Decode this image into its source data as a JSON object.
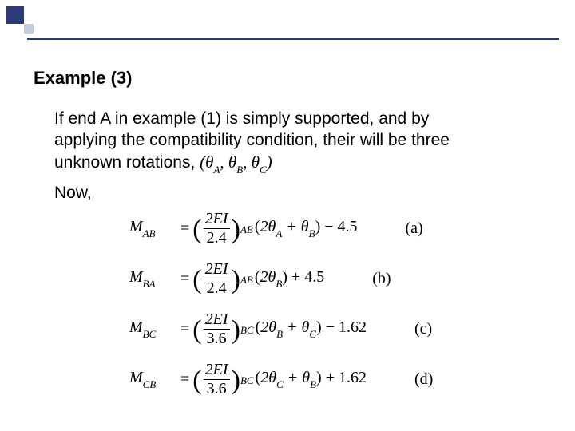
{
  "decor": {
    "primary_color": "#2a3b7a",
    "secondary_color": "#c5cde0",
    "rule_color": "#2a3b7a"
  },
  "heading": "Example (3)",
  "body_lines": [
    "If end A in example (1) is simply supported, and by",
    "applying the compatibility condition, their will be three",
    "unknown rotations,"
  ],
  "unknowns": "(θA, θB, θC)",
  "now": "Now,",
  "equations": [
    {
      "lhs_sym": "M",
      "lhs_sub": "AB",
      "num": "2EI",
      "den": "2.4",
      "frac_sub": "AB",
      "inside": "2θA + θB",
      "tail_sign": "−",
      "tail_val": "4.5",
      "label": "(a)"
    },
    {
      "lhs_sym": "M",
      "lhs_sub": "BA",
      "num": "2EI",
      "den": "2.4",
      "frac_sub": "AB",
      "inside": "2θB",
      "tail_sign": "+",
      "tail_val": "4.5",
      "label": "(b)"
    },
    {
      "lhs_sym": "M",
      "lhs_sub": "BC",
      "num": "2EI",
      "den": "3.6",
      "frac_sub": "BC",
      "inside": "2θB + θC",
      "tail_sign": "−",
      "tail_val": "1.62",
      "label": "(c)"
    },
    {
      "lhs_sym": "M",
      "lhs_sub": "CB",
      "num": "2EI",
      "den": "3.6",
      "frac_sub": "BC",
      "inside": "2θC + θB",
      "tail_sign": "+",
      "tail_val": "1.62",
      "label": "(d)"
    }
  ],
  "style": {
    "heading_fontsize": 22,
    "body_fontsize": 21,
    "eq_fontsize": 20,
    "eq_font": "Times New Roman",
    "text_color": "#000000",
    "background_color": "#ffffff"
  }
}
